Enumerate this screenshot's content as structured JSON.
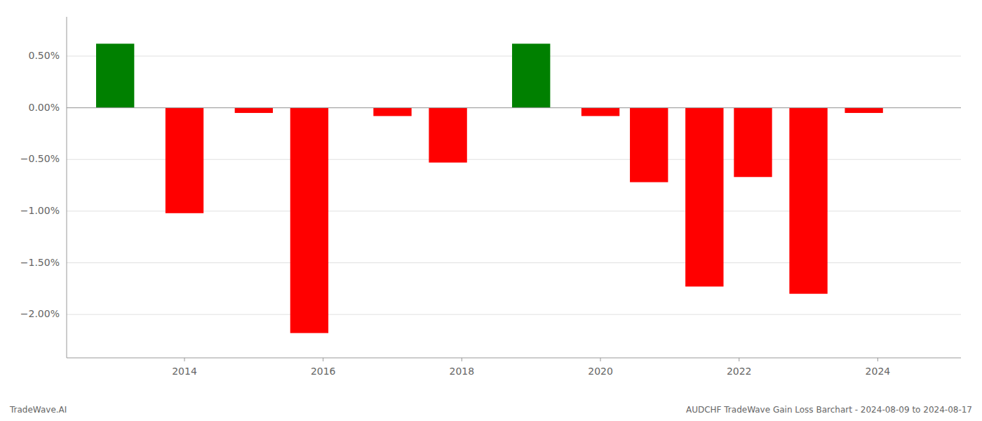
{
  "chart_data": {
    "type": "bar",
    "x": [
      2013,
      2014,
      2015,
      2015.8,
      2017,
      2017.8,
      2019,
      2020,
      2020.7,
      2021.5,
      2022.2,
      2023,
      2023.8
    ],
    "values": [
      0.62,
      -1.02,
      -0.05,
      -2.18,
      -0.08,
      -0.53,
      0.62,
      -0.08,
      -0.72,
      -1.73,
      -0.67,
      -1.8,
      -0.05
    ],
    "colors": [
      "#008000",
      "#ff0000",
      "#ff0000",
      "#ff0000",
      "#ff0000",
      "#ff0000",
      "#008000",
      "#ff0000",
      "#ff0000",
      "#ff0000",
      "#ff0000",
      "#ff0000",
      "#ff0000"
    ],
    "ylim": [
      -2.42,
      0.88
    ],
    "yticks": [
      {
        "value": 0.5,
        "label": "0.50%"
      },
      {
        "value": 0.0,
        "label": "0.00%"
      },
      {
        "value": -0.5,
        "label": "−0.50%"
      },
      {
        "value": -1.0,
        "label": "−1.00%"
      },
      {
        "value": -1.5,
        "label": "−1.50%"
      },
      {
        "value": -2.0,
        "label": "−2.00%"
      }
    ],
    "xlim": [
      2012.3,
      2025.2
    ],
    "xticks": [
      2014,
      2016,
      2018,
      2020,
      2022,
      2024
    ],
    "grid": true,
    "annotations": [
      "TradeWave.AI",
      "AUDCHF TradeWave Gain Loss Barchart - 2024-08-09 to 2024-08-17"
    ]
  }
}
